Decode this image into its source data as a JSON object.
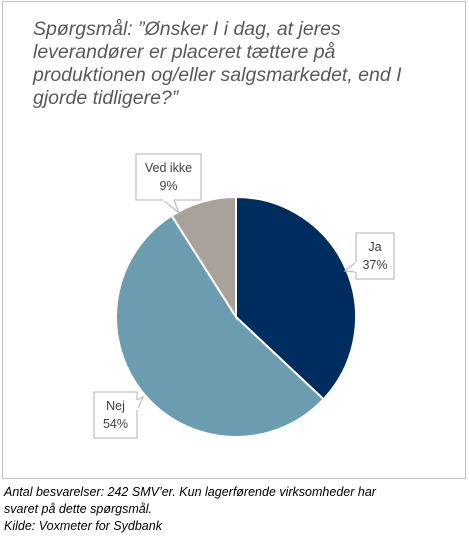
{
  "question": "Spørgsmål: ”Ønsker I i dag, at jeres leverandører er placeret tættere på produktionen og/eller salgsmarkedet, end I gjorde tidligere?”",
  "footnote": {
    "line1": "Antal besvarelser: 242 SMV’er. Kun lagerførende virksomheder har",
    "line2": "svaret på dette spørgsmål.",
    "line3": "Kilde: Voxmeter for Sydbank"
  },
  "chart_data": {
    "type": "pie",
    "slices": [
      {
        "label": "Ja",
        "value": 37,
        "value_label": "37%",
        "color": "#002d5f"
      },
      {
        "label": "Nej",
        "value": 54,
        "value_label": "54%",
        "color": "#6b9caf"
      },
      {
        "label": "Ved ikke",
        "value": 9,
        "value_label": "9%",
        "color": "#a9a29b"
      }
    ],
    "start_angle": "12 o'clock",
    "direction": "clockwise",
    "legend": "none",
    "data_labels": "callouts"
  }
}
